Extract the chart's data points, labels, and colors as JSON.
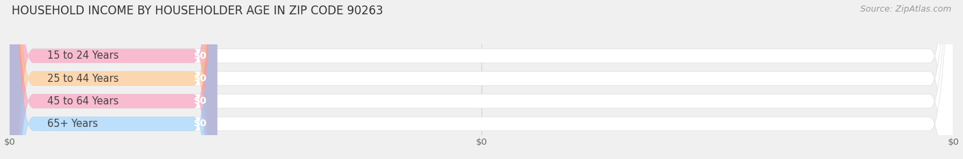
{
  "title": "HOUSEHOLD INCOME BY HOUSEHOLDER AGE IN ZIP CODE 90263",
  "source": "Source: ZipAtlas.com",
  "categories": [
    "15 to 24 Years",
    "25 to 44 Years",
    "45 to 64 Years",
    "65+ Years"
  ],
  "values": [
    0,
    0,
    0,
    0
  ],
  "bar_colors": [
    "#f48fb1",
    "#f9bc7a",
    "#f48fb1",
    "#90caf9"
  ],
  "bg_color": "#f0f0f0",
  "title_fontsize": 12,
  "source_fontsize": 9,
  "label_fontsize": 10.5,
  "value_fontsize": 10
}
